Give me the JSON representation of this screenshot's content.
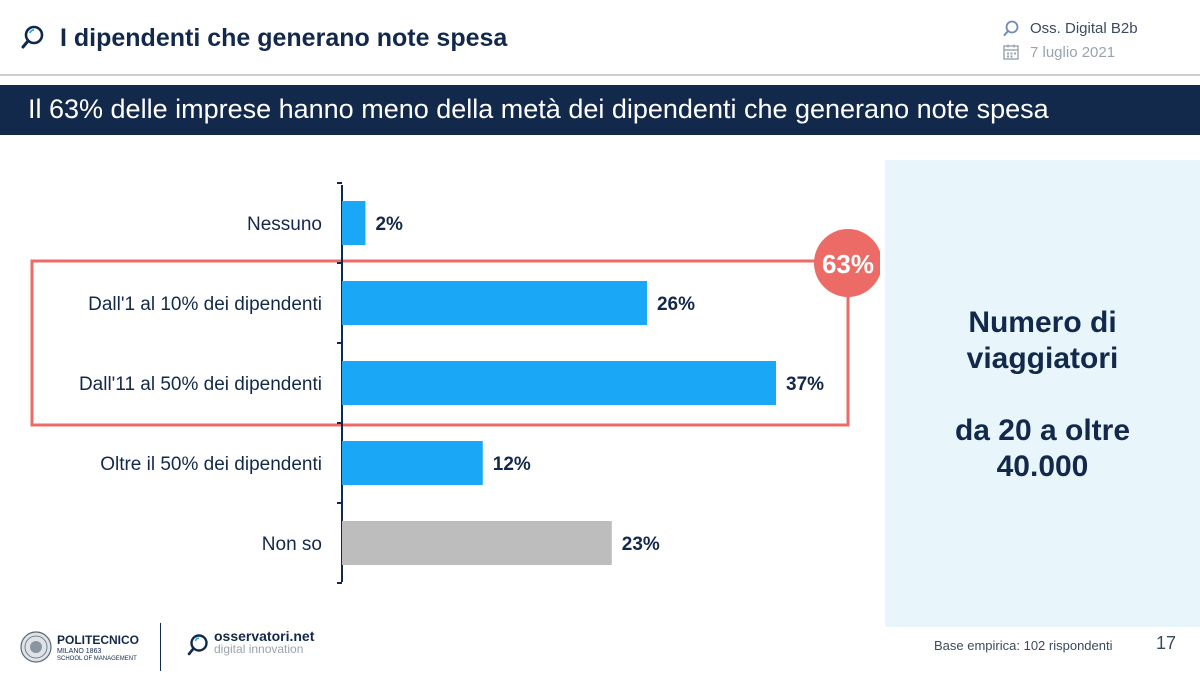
{
  "header": {
    "title": "I dipendenti che generano note spesa",
    "source": "Oss. Digital B2b",
    "date": "7 luglio 2021"
  },
  "banner": {
    "text": "Il 63% delle imprese hanno meno della metà dei dipendenti che generano note spesa"
  },
  "chart_data": {
    "type": "bar",
    "orientation": "horizontal",
    "categories": [
      "Nessuno",
      "Dall'1 al 10% dei dipendenti",
      "Dall'11 al 50% dei dipendenti",
      "Oltre il 50% dei dipendenti",
      "Non so"
    ],
    "values": [
      2,
      26,
      37,
      12,
      23
    ],
    "labels": [
      "2%",
      "26%",
      "37%",
      "12%",
      "23%"
    ],
    "unit": "%",
    "xlim": [
      0,
      40
    ],
    "highlight": {
      "categories": [
        "Dall'1 al 10% dei dipendenti",
        "Dall'11 al 50% dei dipendenti"
      ],
      "label": "63%"
    },
    "colors": {
      "bar": "#1aa7f5",
      "bar_muted": "#bdbdbd",
      "highlight": "#ec6b66",
      "label": "#13294b"
    }
  },
  "side_panel": {
    "line1": "Numero di",
    "line2": "viaggiatori",
    "line3": "da 20 a oltre",
    "line4": "40.000"
  },
  "footer": {
    "poli_name": "POLITECNICO",
    "poli_city": "MILANO 1863",
    "poli_school": "SCHOOL OF MANAGEMENT",
    "osser_name": "osservatori.net",
    "osser_tag": "digital innovation",
    "base": "Base empirica: 102 rispondenti",
    "page": "17"
  },
  "colors": {
    "navy": "#13294b",
    "accent": "#1aa7f5",
    "panel": "#e8f6fc"
  }
}
